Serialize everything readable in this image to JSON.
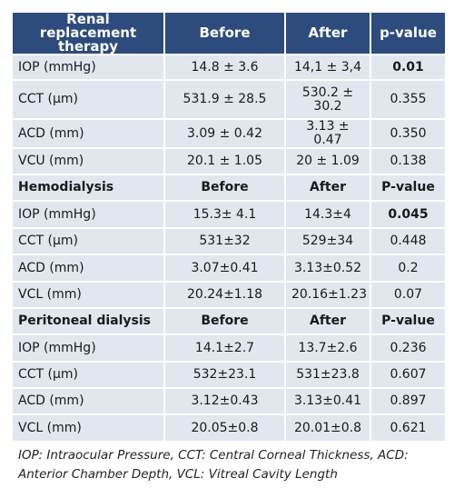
{
  "table": {
    "header": [
      "Renal replacement therapy",
      "Before",
      "After",
      "p-value"
    ],
    "rows": [
      [
        "IOP (mmHg)",
        "14.8 ± 3.6",
        "14,1 ± 3,4",
        "0.01"
      ],
      [
        "CCT (µm)",
        "531.9 ± 28.5",
        "530.2 ± 30.2",
        "0.355"
      ],
      [
        "ACD (mm)",
        "3.09 ± 0.42",
        "3.13 ± 0.47",
        "0.350"
      ],
      [
        "VCU (mm)",
        "20.1 ± 1.05",
        "20 ± 1.09",
        "0.138"
      ],
      [
        "Hemodialysis",
        "Before",
        "After",
        "P-value"
      ],
      [
        "IOP (mmHg)",
        "15.3± 4.1",
        "14.3±4",
        "0.045"
      ],
      [
        "CCT (µm)",
        "531±32",
        "529±34",
        "0.448"
      ],
      [
        "ACD (mm)",
        "3.07±0.41",
        "3.13±0.52",
        "0.2"
      ],
      [
        "VCL (mm)",
        "20.24±1.18",
        "20.16±1.23",
        "0.07"
      ],
      [
        "Peritoneal dialysis",
        "Before",
        "After",
        "P-value"
      ],
      [
        "IOP (mmHg)",
        "14.1±2.7",
        "13.7±2.6",
        "0.236"
      ],
      [
        "CCT (µm)",
        "532±23.1",
        "531±23.8",
        "0.607"
      ],
      [
        "ACD (mm)",
        "3.12±0.43",
        "3.13±0.41",
        "0.897"
      ],
      [
        "VCL (mm)",
        "20.05±0.8",
        "20.01±0.8",
        "0.621"
      ]
    ]
  },
  "footnote": "IOP: Intraocular Pressure, CCT: Central Corneal Thickness, ACD: Anterior Chamber Depth, VCL: Vitreal Cavity Length"
}
